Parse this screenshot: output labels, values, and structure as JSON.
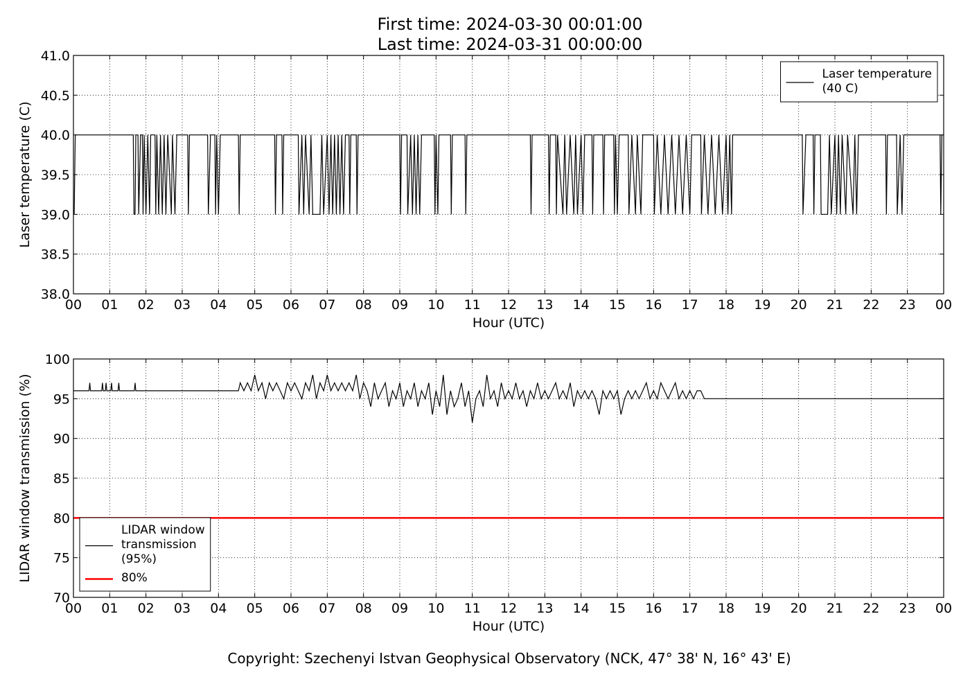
{
  "title": "First time: 2024-03-30 00:01:00",
  "subtitle": "Last time: 2024-03-31 00:00:00",
  "footer": "Copyright: Szechenyi Istvan Geophysical Observatory (NCK, 47° 38' N, 16° 43' E)",
  "chart_data": [
    {
      "type": "line",
      "ylabel": "Laser temperature (C)",
      "xlabel": "Hour (UTC)",
      "xlim": [
        0,
        24
      ],
      "xticks": [
        {
          "value": 0,
          "label": "00"
        },
        {
          "value": 1,
          "label": "01"
        },
        {
          "value": 2,
          "label": "02"
        },
        {
          "value": 3,
          "label": "03"
        },
        {
          "value": 4,
          "label": "04"
        },
        {
          "value": 5,
          "label": "05"
        },
        {
          "value": 6,
          "label": "06"
        },
        {
          "value": 7,
          "label": "07"
        },
        {
          "value": 8,
          "label": "08"
        },
        {
          "value": 9,
          "label": "09"
        },
        {
          "value": 10,
          "label": "10"
        },
        {
          "value": 11,
          "label": "11"
        },
        {
          "value": 12,
          "label": "12"
        },
        {
          "value": 13,
          "label": "13"
        },
        {
          "value": 14,
          "label": "14"
        },
        {
          "value": 15,
          "label": "15"
        },
        {
          "value": 16,
          "label": "16"
        },
        {
          "value": 17,
          "label": "17"
        },
        {
          "value": 18,
          "label": "18"
        },
        {
          "value": 19,
          "label": "19"
        },
        {
          "value": 20,
          "label": "20"
        },
        {
          "value": 21,
          "label": "21"
        },
        {
          "value": 22,
          "label": "22"
        },
        {
          "value": 23,
          "label": "23"
        },
        {
          "value": 24,
          "label": "00"
        }
      ],
      "ylim": [
        38,
        41
      ],
      "yticks": [
        {
          "value": 38,
          "label": "38.0"
        },
        38.5,
        {
          "value": 39,
          "label": "39.0"
        },
        39.5,
        {
          "value": 40,
          "label": "40.0"
        },
        40.5,
        {
          "value": 41,
          "label": "41.0"
        }
      ],
      "grid": true,
      "legend": "upper right",
      "series": [
        {
          "name": "Laser temperature\n(40 C)",
          "color": "#000000",
          "x": [
            0.02,
            0.05,
            1.65,
            1.67,
            1.7,
            1.72,
            1.78,
            1.8,
            1.85,
            1.9,
            1.92,
            1.95,
            2.0,
            2.05,
            2.1,
            2.13,
            2.25,
            2.27,
            2.3,
            2.35,
            2.4,
            2.45,
            2.5,
            2.55,
            2.6,
            2.7,
            2.73,
            2.8,
            2.85,
            3.15,
            3.17,
            3.2,
            3.7,
            3.72,
            3.78,
            3.9,
            3.92,
            3.95,
            4.0,
            4.05,
            4.55,
            4.57,
            4.6,
            5.55,
            5.57,
            5.6,
            5.75,
            5.77,
            5.8,
            6.2,
            6.22,
            6.3,
            6.35,
            6.4,
            6.5,
            6.55,
            6.6,
            6.8,
            6.85,
            6.9,
            7.0,
            7.05,
            7.1,
            7.15,
            7.2,
            7.25,
            7.3,
            7.35,
            7.4,
            7.45,
            7.5,
            7.6,
            7.62,
            7.65,
            7.8,
            7.82,
            7.85,
            9.0,
            9.02,
            9.05,
            9.2,
            9.22,
            9.3,
            9.35,
            9.4,
            9.45,
            9.5,
            9.55,
            9.6,
            9.95,
            9.97,
            10.0,
            10.05,
            10.08,
            10.4,
            10.42,
            10.45,
            10.8,
            10.82,
            10.85,
            12.6,
            12.62,
            12.65,
            13.1,
            13.12,
            13.15,
            13.3,
            13.32,
            13.35,
            13.5,
            13.55,
            13.6,
            13.7,
            13.8,
            13.85,
            13.9,
            14.0,
            14.05,
            14.1,
            14.3,
            14.32,
            14.35,
            14.6,
            14.62,
            14.65,
            14.9,
            14.92,
            14.95,
            15.0,
            15.05,
            15.3,
            15.32,
            15.4,
            15.5,
            15.55,
            15.65,
            15.7,
            16.0,
            16.02,
            16.1,
            16.2,
            16.3,
            16.4,
            16.5,
            16.6,
            16.7,
            16.8,
            16.9,
            17.0,
            17.05,
            17.3,
            17.32,
            17.4,
            17.5,
            17.6,
            17.7,
            17.8,
            17.9,
            18.0,
            18.05,
            18.1,
            18.15,
            18.18,
            20.1,
            20.12,
            20.2,
            20.4,
            20.42,
            20.45,
            20.6,
            20.62,
            20.8,
            20.85,
            20.9,
            21.0,
            21.05,
            21.1,
            21.15,
            21.2,
            21.3,
            21.35,
            21.5,
            21.55,
            21.6,
            21.65,
            22.4,
            22.42,
            22.45,
            22.7,
            22.72,
            22.8,
            22.85,
            22.9,
            23.9,
            23.92,
            23.95,
            24
          ],
          "values": [
            39,
            40,
            40,
            39,
            39,
            40,
            40,
            39,
            40,
            40,
            39,
            40,
            39,
            40,
            39,
            40,
            40,
            39,
            40,
            39,
            40,
            39,
            40,
            39,
            40,
            39,
            40,
            39,
            40,
            40,
            39,
            40,
            40,
            39,
            40,
            40,
            39,
            40,
            39,
            40,
            40,
            39,
            40,
            40,
            39,
            40,
            40,
            39,
            40,
            40,
            39,
            40,
            39,
            40,
            39,
            40,
            39,
            39,
            40,
            39,
            40,
            39,
            40,
            39,
            40,
            39,
            40,
            39,
            40,
            39,
            40,
            40,
            39,
            40,
            40,
            39,
            40,
            40,
            39,
            40,
            40,
            39,
            40,
            39,
            40,
            39,
            40,
            39,
            40,
            40,
            39,
            40,
            39,
            40,
            40,
            39,
            40,
            40,
            39,
            40,
            40,
            39,
            40,
            40,
            39,
            40,
            40,
            39,
            40,
            39,
            40,
            39,
            40,
            39,
            40,
            39,
            40,
            39,
            40,
            40,
            39,
            40,
            40,
            39,
            40,
            40,
            39,
            40,
            39,
            40,
            40,
            39,
            40,
            39,
            40,
            39,
            40,
            40,
            39,
            40,
            39,
            40,
            39,
            40,
            39,
            40,
            39,
            40,
            39,
            40,
            40,
            39,
            40,
            39,
            40,
            39,
            40,
            39,
            40,
            39,
            40,
            39,
            40,
            40,
            39,
            40,
            40,
            39,
            40,
            40,
            39,
            39,
            40,
            39,
            40,
            39,
            40,
            39,
            40,
            39,
            40,
            39,
            40,
            39,
            40,
            40,
            39,
            40,
            40,
            39,
            40,
            39,
            40,
            40,
            39,
            40,
            40
          ]
        }
      ]
    },
    {
      "type": "line",
      "ylabel": "LIDAR window transmission (%)",
      "xlabel": "Hour (UTC)",
      "xlim": [
        0,
        24
      ],
      "xticks": [
        {
          "value": 0,
          "label": "00"
        },
        {
          "value": 1,
          "label": "01"
        },
        {
          "value": 2,
          "label": "02"
        },
        {
          "value": 3,
          "label": "03"
        },
        {
          "value": 4,
          "label": "04"
        },
        {
          "value": 5,
          "label": "05"
        },
        {
          "value": 6,
          "label": "06"
        },
        {
          "value": 7,
          "label": "07"
        },
        {
          "value": 8,
          "label": "08"
        },
        {
          "value": 9,
          "label": "09"
        },
        {
          "value": 10,
          "label": "10"
        },
        {
          "value": 11,
          "label": "11"
        },
        {
          "value": 12,
          "label": "12"
        },
        {
          "value": 13,
          "label": "13"
        },
        {
          "value": 14,
          "label": "14"
        },
        {
          "value": 15,
          "label": "15"
        },
        {
          "value": 16,
          "label": "16"
        },
        {
          "value": 17,
          "label": "17"
        },
        {
          "value": 18,
          "label": "18"
        },
        {
          "value": 19,
          "label": "19"
        },
        {
          "value": 20,
          "label": "20"
        },
        {
          "value": 21,
          "label": "21"
        },
        {
          "value": 22,
          "label": "22"
        },
        {
          "value": 23,
          "label": "23"
        },
        {
          "value": 24,
          "label": "00"
        }
      ],
      "ylim": [
        70,
        100
      ],
      "yticks": [
        70,
        75,
        80,
        85,
        90,
        95,
        100
      ],
      "grid": true,
      "legend": "lower left",
      "series": [
        {
          "name": "LIDAR window\ntransmission\n(95%)",
          "color": "#000000",
          "x": [
            0,
            0.43,
            0.45,
            0.47,
            0.78,
            0.8,
            0.82,
            0.88,
            0.9,
            0.92,
            1.03,
            1.05,
            1.07,
            1.23,
            1.25,
            1.27,
            1.68,
            1.7,
            1.72,
            4.55,
            4.6,
            4.7,
            4.8,
            4.9,
            5.0,
            5.1,
            5.2,
            5.3,
            5.4,
            5.5,
            5.6,
            5.7,
            5.8,
            5.9,
            6.0,
            6.1,
            6.2,
            6.3,
            6.4,
            6.5,
            6.6,
            6.7,
            6.8,
            6.9,
            7.0,
            7.1,
            7.2,
            7.3,
            7.4,
            7.5,
            7.6,
            7.7,
            7.8,
            7.9,
            8.0,
            8.1,
            8.2,
            8.3,
            8.4,
            8.5,
            8.6,
            8.7,
            8.8,
            8.9,
            9.0,
            9.1,
            9.2,
            9.3,
            9.4,
            9.5,
            9.6,
            9.7,
            9.8,
            9.9,
            10.0,
            10.1,
            10.2,
            10.3,
            10.4,
            10.5,
            10.6,
            10.7,
            10.8,
            10.9,
            11.0,
            11.1,
            11.2,
            11.3,
            11.4,
            11.5,
            11.6,
            11.7,
            11.8,
            11.9,
            12.0,
            12.1,
            12.2,
            12.3,
            12.4,
            12.5,
            12.6,
            12.7,
            12.8,
            12.9,
            13.0,
            13.1,
            13.2,
            13.3,
            13.4,
            13.5,
            13.6,
            13.7,
            13.8,
            13.9,
            14.0,
            14.1,
            14.2,
            14.3,
            14.4,
            14.5,
            14.6,
            14.7,
            14.8,
            14.9,
            15.0,
            15.1,
            15.2,
            15.3,
            15.4,
            15.5,
            15.6,
            15.7,
            15.8,
            15.9,
            16.0,
            16.1,
            16.2,
            16.3,
            16.4,
            16.5,
            16.6,
            16.7,
            16.8,
            16.9,
            17.0,
            17.1,
            17.2,
            17.3,
            17.4,
            17.5,
            24
          ],
          "values": [
            96,
            96,
            97,
            96,
            96,
            97,
            96,
            96,
            97,
            96,
            96,
            97,
            96,
            96,
            97,
            96,
            96,
            97,
            96,
            96,
            97,
            96,
            97,
            96,
            98,
            96,
            97,
            95,
            97,
            96,
            97,
            96,
            95,
            97,
            96,
            97,
            96,
            95,
            97,
            96,
            98,
            95,
            97,
            96,
            98,
            96,
            97,
            96,
            97,
            96,
            97,
            96,
            98,
            95,
            97,
            96,
            94,
            97,
            95,
            96,
            97,
            94,
            96,
            95,
            97,
            94,
            96,
            95,
            97,
            94,
            96,
            95,
            97,
            93,
            96,
            94,
            98,
            93,
            96,
            94,
            95,
            97,
            94,
            96,
            92,
            95,
            96,
            94,
            98,
            95,
            96,
            94,
            97,
            95,
            96,
            95,
            97,
            95,
            96,
            94,
            96,
            95,
            97,
            95,
            96,
            95,
            96,
            97,
            95,
            96,
            95,
            97,
            94,
            96,
            95,
            96,
            95,
            96,
            95,
            93,
            96,
            95,
            96,
            95,
            96,
            93,
            95,
            96,
            95,
            96,
            95,
            96,
            97,
            95,
            96,
            95,
            97,
            96,
            95,
            96,
            97,
            95,
            96,
            95,
            96,
            95,
            96,
            96,
            95,
            95,
            95
          ]
        },
        {
          "name": "80%",
          "color": "#ff0000",
          "x": [
            0,
            24
          ],
          "values": [
            80,
            80
          ]
        }
      ]
    }
  ]
}
